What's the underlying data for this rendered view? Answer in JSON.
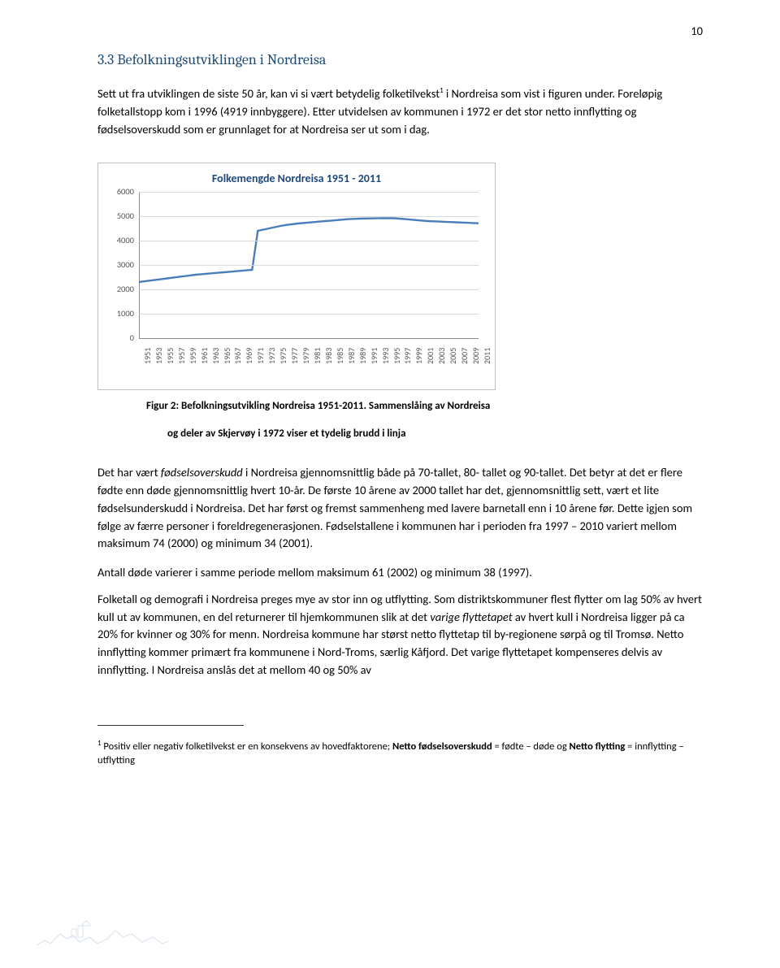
{
  "page_number_top": "10",
  "heading": "3.3  Befolkningsutviklingen i Nordreisa",
  "para1_a": "Sett ut fra utviklingen de siste 50 år, kan vi si vært betydelig folketilvekst",
  "para1_b": " i Nordreisa som vist i figuren under. Foreløpig folketallstopp kom i 1996 (4919 innbyggere). Etter utvidelsen av kommunen i 1972 er det stor netto innflytting og fødselsoverskudd som er grunnlaget for at Nordreisa ser ut som i dag.",
  "para1_sup": "1",
  "chart": {
    "title": "Folkemengde Nordreisa 1951 - 2011",
    "ylim": [
      0,
      6000
    ],
    "ytick_step": 1000,
    "yticks": [
      0,
      1000,
      2000,
      3000,
      4000,
      5000,
      6000
    ],
    "background_color": "#ffffff",
    "grid_color": "#d9d9d9",
    "line_color": "#4a7ebb",
    "line_width": 2.4,
    "xticks": [
      "1951",
      "1953",
      "1955",
      "1957",
      "1959",
      "1961",
      "1963",
      "1965",
      "1967",
      "1969",
      "1971",
      "1973",
      "1975",
      "1977",
      "1979",
      "1981",
      "1983",
      "1985",
      "1987",
      "1989",
      "1991",
      "1993",
      "1995",
      "1997",
      "1999",
      "2001",
      "2003",
      "2005",
      "2007",
      "2009",
      "2011"
    ],
    "years": [
      1951,
      1952,
      1953,
      1954,
      1955,
      1956,
      1957,
      1958,
      1959,
      1960,
      1961,
      1962,
      1963,
      1964,
      1965,
      1966,
      1967,
      1968,
      1969,
      1970,
      1971,
      1972,
      1973,
      1974,
      1975,
      1976,
      1977,
      1978,
      1979,
      1980,
      1981,
      1982,
      1983,
      1984,
      1985,
      1986,
      1987,
      1988,
      1989,
      1990,
      1991,
      1992,
      1993,
      1994,
      1995,
      1996,
      1997,
      1998,
      1999,
      2000,
      2001,
      2002,
      2003,
      2004,
      2005,
      2006,
      2007,
      2008,
      2009,
      2010,
      2011
    ],
    "values": [
      2300,
      2330,
      2360,
      2390,
      2420,
      2450,
      2480,
      2510,
      2540,
      2570,
      2600,
      2620,
      2640,
      2660,
      2680,
      2700,
      2720,
      2740,
      2760,
      2780,
      2800,
      4400,
      4450,
      4500,
      4550,
      4600,
      4640,
      4670,
      4700,
      4720,
      4740,
      4760,
      4780,
      4800,
      4820,
      4840,
      4860,
      4880,
      4890,
      4900,
      4905,
      4910,
      4914,
      4916,
      4918,
      4919,
      4900,
      4880,
      4860,
      4840,
      4820,
      4800,
      4790,
      4780,
      4770,
      4760,
      4750,
      4740,
      4730,
      4720,
      4710
    ]
  },
  "caption_a": "Figur 2: Befolkningsutvikling Nordreisa 1951-2011. Sammenslåing av Nordreisa",
  "caption_b": "og deler av Skjervøy i 1972 viser et tydelig brudd i linja",
  "para2_a": "Det har vært ",
  "para2_b_italic": "fødselsoverskudd",
  "para2_c": " i Nordreisa gjennomsnittlig både på 70-tallet, 80- tallet og 90-tallet. Det betyr at det er flere fødte enn døde gjennomsnittlig hvert 10-år.  De første 10 årene av 2000 tallet har det, gjennomsnittlig sett, vært et lite fødselsunderskudd i Nordreisa. Det har først og fremst sammenheng med lavere barnetall enn i 10 årene før. Dette igjen som følge av færre personer i foreldregenerasjonen. Fødselstallene i kommunen har i perioden fra 1997 – 2010 variert mellom maksimum 74 (2000) og minimum 34 (2001).",
  "para3": "Antall døde varierer i samme periode mellom maksimum 61 (2002) og minimum 38 (1997).",
  "para4_a": "Folketall og demografi i Nordreisa preges mye av stor inn og utflytting. Som distriktskommuner flest flytter om lag 50% av hvert kull ut av kommunen, en del returnerer til hjemkommunen slik at det ",
  "para4_b_italic": "varige flyttetapet",
  "para4_c": " av hvert kull i Nordreisa ligger på ca 20% for kvinner og 30% for menn. Nordreisa kommune har størst netto flyttetap til by-regionene sørpå og til Tromsø. Netto innflytting kommer primært fra kommunene i Nord-Troms, særlig Kåfjord. Det varige flyttetapet kompenseres delvis av innflytting. I Nordreisa anslås det at mellom 40 og 50% av",
  "footnote_sup": "1",
  "footnote_a": " Positiv eller negativ folketilvekst er en konsekvens av hovedfaktorene; ",
  "footnote_b_bold": "Netto fødselsoverskudd",
  "footnote_c": " = fødte – døde og ",
  "footnote_d_bold": "Netto flytting",
  "footnote_e": " = innflytting – utflytting"
}
